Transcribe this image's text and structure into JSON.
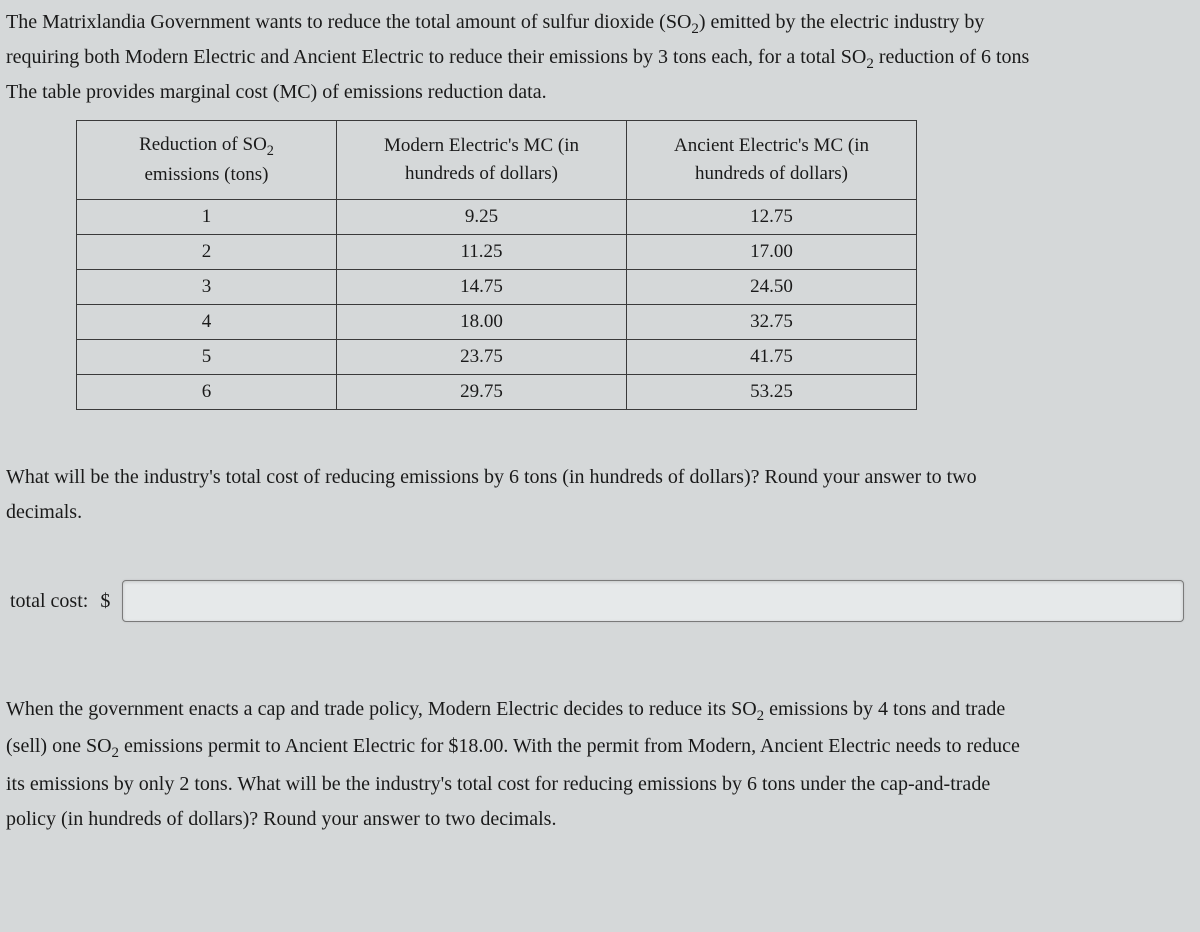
{
  "intro": {
    "line1_a": "The Matrixlandia Government wants to reduce the total amount of sulfur dioxide (SO",
    "line1_b": ") emitted by the electric industry by",
    "line2_a": "requiring both Modern Electric and Ancient Electric to reduce their emissions by 3 tons each, for a total SO",
    "line2_b": " reduction of 6 tons",
    "line3": "The table provides marginal cost (MC) of emissions reduction data."
  },
  "sub2": "2",
  "table": {
    "headers": {
      "c1_a": "Reduction of SO",
      "c1_b": "emissions (tons)",
      "c2_a": "Modern Electric's MC (in",
      "c2_b": "hundreds of dollars)",
      "c3_a": "Ancient Electric's MC (in",
      "c3_b": "hundreds of dollars)"
    },
    "rows": [
      {
        "r": "1",
        "m": "9.25",
        "a": "12.75"
      },
      {
        "r": "2",
        "m": "11.25",
        "a": "17.00"
      },
      {
        "r": "3",
        "m": "14.75",
        "a": "24.50"
      },
      {
        "r": "4",
        "m": "18.00",
        "a": "32.75"
      },
      {
        "r": "5",
        "m": "23.75",
        "a": "41.75"
      },
      {
        "r": "6",
        "m": "29.75",
        "a": "53.25"
      }
    ]
  },
  "question": {
    "line1": "What will be the industry's total cost of reducing emissions by 6 tons (in hundreds of dollars)? Round your answer to two",
    "line2": "decimals."
  },
  "input": {
    "label": "total cost:",
    "currency": "$"
  },
  "followup": {
    "p1_a": "When the government enacts a cap and trade policy, Modern Electric decides to reduce its SO",
    "p1_b": " emissions by 4 tons and trade",
    "p2_a": "(sell) one SO",
    "p2_b": " emissions permit to Ancient Electric for $18.00. With the permit from Modern, Ancient Electric needs to reduce",
    "p3": "its emissions by only 2 tons. What will be the industry's total cost for reducing emissions by 6 tons under the cap-and-trade",
    "p4": "policy (in hundreds of dollars)? Round your answer to two decimals."
  },
  "colors": {
    "background": "#d5d8d9",
    "text": "#1a1a1a",
    "border": "#3a3a3a",
    "input_bg": "#e6e9ea",
    "input_border": "#7a7a7a"
  }
}
